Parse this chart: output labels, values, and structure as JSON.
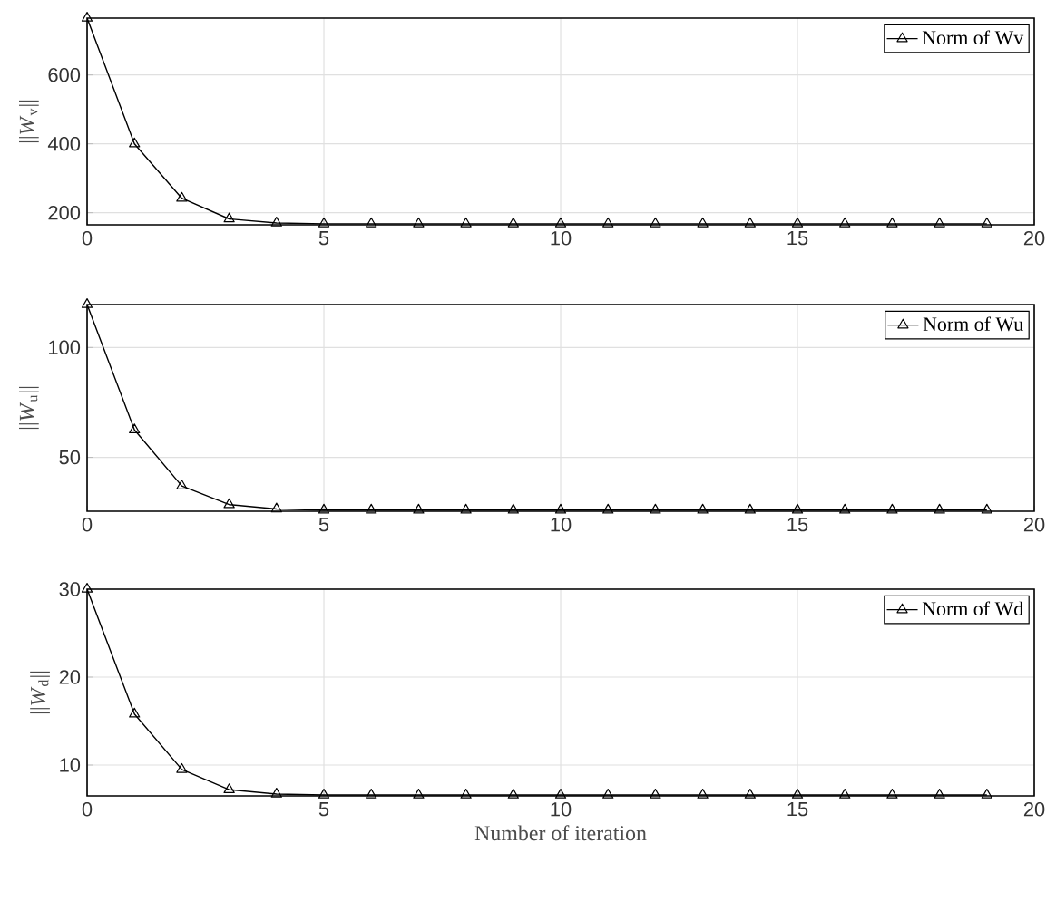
{
  "chart_data": [
    {
      "type": "line",
      "ylabel": "||*W*$_{v}$||",
      "x": [
        0,
        1,
        2,
        3,
        4,
        5,
        6,
        7,
        8,
        9,
        10,
        11,
        12,
        13,
        14,
        15,
        16,
        17,
        18,
        19
      ],
      "series": [
        {
          "name": "Norm of Wv",
          "color": "#000000",
          "values": [
            765,
            400,
            242,
            182,
            170,
            168,
            168,
            168,
            168,
            168,
            168,
            168,
            168,
            168,
            168,
            168,
            168,
            168,
            168,
            168
          ]
        }
      ],
      "xlim": [
        0,
        20
      ],
      "xticks": [
        0,
        5,
        10,
        15,
        20
      ],
      "ylim": [
        165,
        765
      ],
      "yticks": [
        200,
        400,
        600
      ],
      "grid": true,
      "legend": "top right",
      "marker": "triangle",
      "line_style": "solid"
    },
    {
      "type": "line",
      "ylabel": "||*W*$_{u}$||",
      "x": [
        0,
        1,
        2,
        3,
        4,
        5,
        6,
        7,
        8,
        9,
        10,
        11,
        12,
        13,
        14,
        15,
        16,
        17,
        18,
        19
      ],
      "series": [
        {
          "name": "Norm of Wu",
          "color": "#000000",
          "values": [
            119.5,
            62.5,
            37,
            28.5,
            26.5,
            26,
            26,
            26,
            26,
            26,
            26,
            26,
            26,
            26,
            26,
            26,
            26,
            26,
            26,
            26
          ]
        }
      ],
      "xlim": [
        0,
        20
      ],
      "xticks": [
        0,
        5,
        10,
        15,
        20
      ],
      "ylim": [
        25.5,
        119.5
      ],
      "yticks": [
        50,
        100
      ],
      "grid": true,
      "legend": "top right",
      "marker": "triangle",
      "line_style": "solid"
    },
    {
      "type": "line",
      "ylabel": "||*W*$_{d}$||",
      "xlabel": "Number of iteration",
      "x": [
        0,
        1,
        2,
        3,
        4,
        5,
        6,
        7,
        8,
        9,
        10,
        11,
        12,
        13,
        14,
        15,
        16,
        17,
        18,
        19
      ],
      "series": [
        {
          "name": "Norm of Wd",
          "color": "#000000",
          "values": [
            30,
            15.8,
            9.5,
            7.2,
            6.7,
            6.6,
            6.6,
            6.6,
            6.6,
            6.6,
            6.6,
            6.6,
            6.6,
            6.6,
            6.6,
            6.6,
            6.6,
            6.6,
            6.6,
            6.6
          ]
        }
      ],
      "xlim": [
        0,
        20
      ],
      "xticks": [
        0,
        5,
        10,
        15,
        20
      ],
      "ylim": [
        6.5,
        30
      ],
      "yticks": [
        10,
        20,
        30
      ],
      "grid": true,
      "legend": "top right",
      "marker": "triangle",
      "line_style": "solid"
    }
  ]
}
